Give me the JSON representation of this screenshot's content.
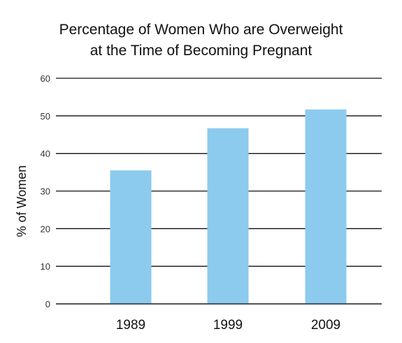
{
  "chart_data": {
    "type": "bar",
    "title_lines": [
      "Percentage of Women Who are Overweight",
      "at the Time of Becoming Pregnant"
    ],
    "categories": [
      "1989",
      "1999",
      "2009"
    ],
    "values": [
      35.5,
      46.7,
      51.7
    ],
    "xlabel": "",
    "ylabel": "% of Women",
    "ylim": [
      0,
      60
    ],
    "yticks": [
      0,
      10,
      20,
      30,
      40,
      50,
      60
    ],
    "grid": true,
    "legend": "none",
    "bar_color": "#8ccbee",
    "grid_color": "#111111"
  }
}
